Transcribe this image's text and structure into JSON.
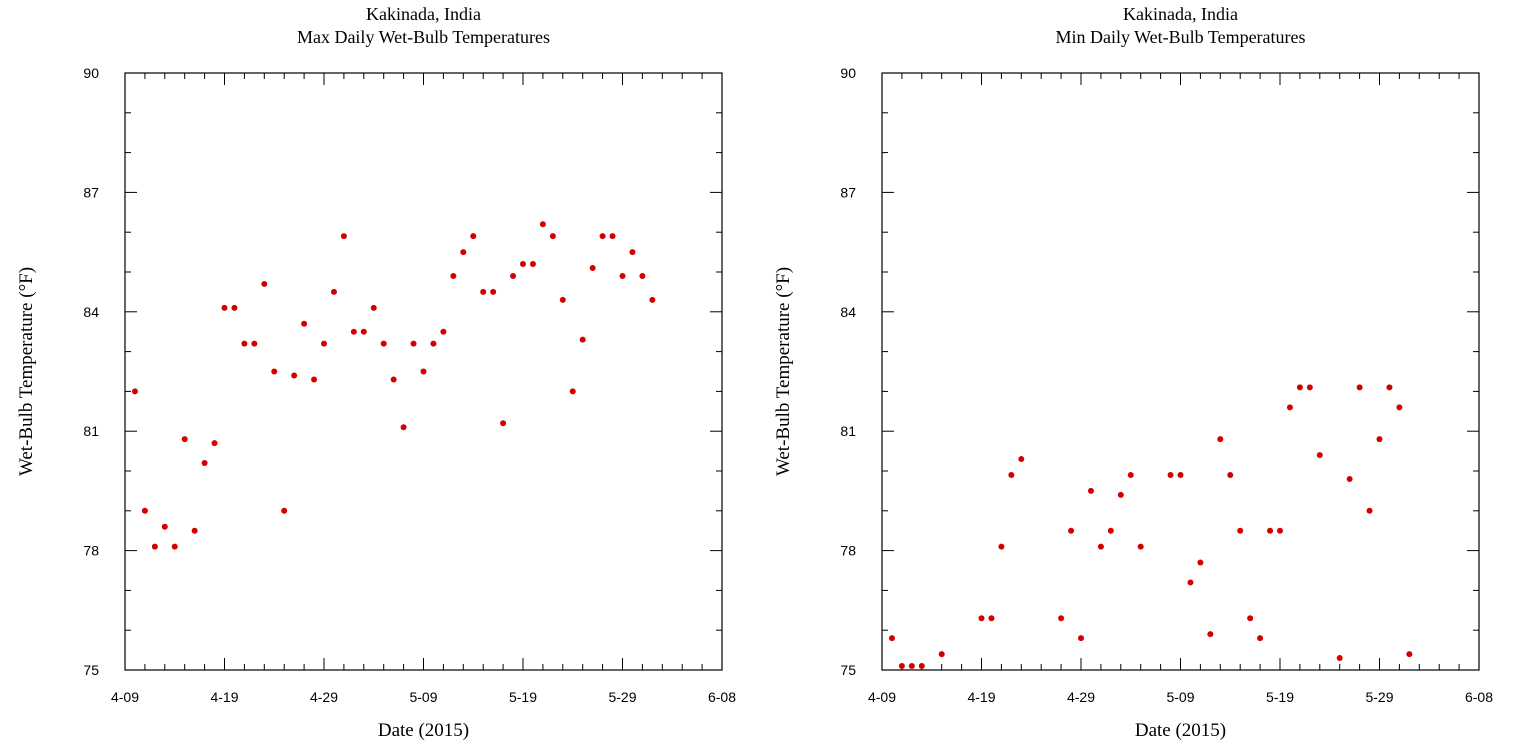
{
  "chart_data": [
    {
      "type": "scatter",
      "title": "Kakinada, India",
      "subtitle": "Max Daily Wet-Bulb Temperatures",
      "xlabel": "Date (2015)",
      "ylabel": "Wet-Bulb Temperature (°F)",
      "xlim": [
        "2015-04-09",
        "2015-06-08"
      ],
      "ylim": [
        75,
        90
      ],
      "x_ticks": [
        "4-09",
        "4-19",
        "4-29",
        "5-09",
        "5-19",
        "5-29",
        "6-08"
      ],
      "y_ticks": [
        75,
        78,
        81,
        84,
        87,
        90
      ],
      "marker_color": "#d40000",
      "x": [
        "2015-04-10",
        "2015-04-11",
        "2015-04-12",
        "2015-04-13",
        "2015-04-14",
        "2015-04-15",
        "2015-04-16",
        "2015-04-17",
        "2015-04-18",
        "2015-04-19",
        "2015-04-20",
        "2015-04-21",
        "2015-04-22",
        "2015-04-23",
        "2015-04-24",
        "2015-04-25",
        "2015-04-26",
        "2015-04-27",
        "2015-04-28",
        "2015-04-29",
        "2015-04-30",
        "2015-05-01",
        "2015-05-02",
        "2015-05-03",
        "2015-05-04",
        "2015-05-05",
        "2015-05-06",
        "2015-05-07",
        "2015-05-08",
        "2015-05-09",
        "2015-05-10",
        "2015-05-11",
        "2015-05-12",
        "2015-05-13",
        "2015-05-14",
        "2015-05-15",
        "2015-05-16",
        "2015-05-17",
        "2015-05-18",
        "2015-05-19",
        "2015-05-20",
        "2015-05-21",
        "2015-05-22",
        "2015-05-23",
        "2015-05-24",
        "2015-05-25",
        "2015-05-26",
        "2015-05-27",
        "2015-05-28",
        "2015-05-29",
        "2015-05-30",
        "2015-05-31",
        "2015-06-01"
      ],
      "y": [
        82.0,
        79.0,
        78.1,
        78.6,
        78.1,
        80.8,
        78.5,
        80.2,
        80.7,
        84.1,
        84.1,
        83.2,
        83.2,
        84.7,
        82.5,
        79.0,
        82.4,
        83.7,
        82.3,
        83.2,
        84.5,
        85.9,
        83.5,
        83.5,
        84.1,
        83.2,
        82.3,
        81.1,
        83.2,
        82.5,
        83.2,
        83.5,
        84.9,
        85.5,
        85.9,
        84.5,
        84.5,
        81.2,
        84.9,
        85.2,
        85.2,
        86.2,
        85.9,
        84.3,
        82.0,
        83.3,
        85.1,
        85.9,
        85.9,
        84.9,
        85.5,
        84.9,
        84.3
      ]
    },
    {
      "type": "scatter",
      "title": "Kakinada, India",
      "subtitle": "Min Daily Wet-Bulb Temperatures",
      "xlabel": "Date (2015)",
      "ylabel": "Wet-Bulb Temperature (°F)",
      "xlim": [
        "2015-04-09",
        "2015-06-08"
      ],
      "ylim": [
        75,
        90
      ],
      "x_ticks": [
        "4-09",
        "4-19",
        "4-29",
        "5-09",
        "5-19",
        "5-29",
        "6-08"
      ],
      "y_ticks": [
        75,
        78,
        81,
        84,
        87,
        90
      ],
      "marker_color": "#d40000",
      "x": [
        "2015-04-10",
        "2015-04-11",
        "2015-04-12",
        "2015-04-13",
        "2015-04-15",
        "2015-04-19",
        "2015-04-20",
        "2015-04-21",
        "2015-04-22",
        "2015-04-23",
        "2015-04-27",
        "2015-04-28",
        "2015-04-29",
        "2015-04-30",
        "2015-05-01",
        "2015-05-02",
        "2015-05-03",
        "2015-05-04",
        "2015-05-05",
        "2015-05-08",
        "2015-05-09",
        "2015-05-10",
        "2015-05-11",
        "2015-05-12",
        "2015-05-13",
        "2015-05-14",
        "2015-05-15",
        "2015-05-16",
        "2015-05-17",
        "2015-05-18",
        "2015-05-19",
        "2015-05-20",
        "2015-05-21",
        "2015-05-22",
        "2015-05-23",
        "2015-05-25",
        "2015-05-26",
        "2015-05-27",
        "2015-05-28",
        "2015-05-29",
        "2015-05-30",
        "2015-05-31",
        "2015-06-01"
      ],
      "y": [
        75.8,
        75.1,
        75.1,
        75.1,
        75.4,
        76.3,
        76.3,
        78.1,
        79.9,
        80.3,
        76.3,
        78.5,
        75.8,
        79.5,
        78.1,
        78.5,
        79.4,
        79.9,
        78.1,
        79.9,
        79.9,
        77.2,
        77.7,
        75.9,
        80.8,
        79.9,
        78.5,
        76.3,
        75.8,
        78.5,
        78.5,
        81.6,
        82.1,
        82.1,
        80.4,
        75.3,
        79.8,
        82.1,
        79.0,
        80.8,
        82.1,
        81.6,
        75.4
      ]
    }
  ]
}
